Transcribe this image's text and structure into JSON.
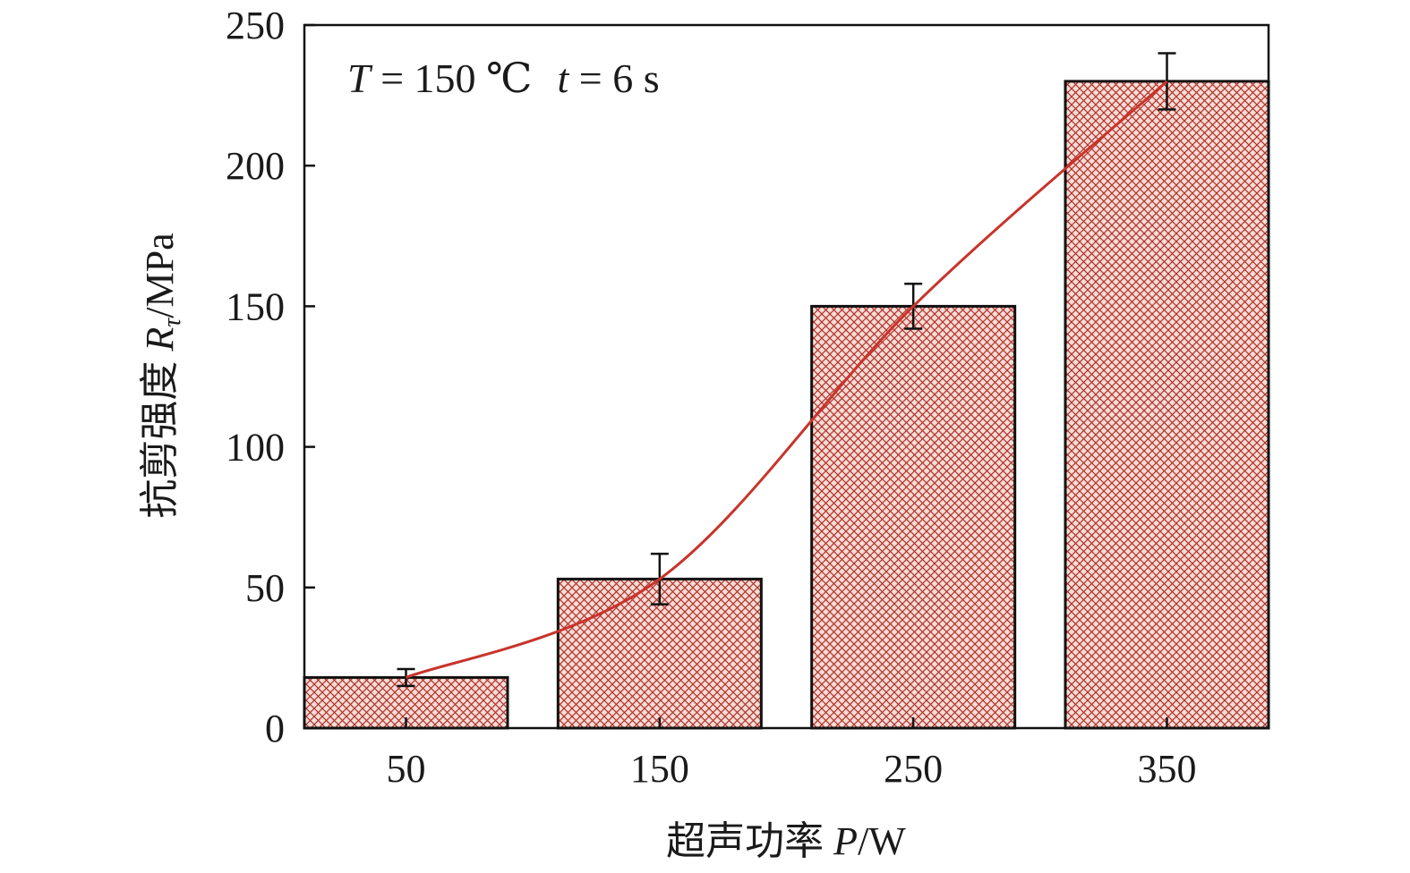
{
  "chart_data": {
    "type": "bar",
    "categories": [
      "50",
      "150",
      "250",
      "350"
    ],
    "values": [
      18,
      53,
      150,
      230
    ],
    "errors": [
      3,
      9,
      8,
      10
    ],
    "trend_line": true,
    "xlabel_cn": "超声功率 ",
    "xlabel_var": "P",
    "xlabel_unit": "/W",
    "ylabel_cn": "抗剪强度 ",
    "ylabel_var": "R",
    "ylabel_sub": "τ",
    "ylabel_unit": "/MPa",
    "ylim": [
      0,
      250
    ],
    "yticks": [
      "0",
      "50",
      "100",
      "150",
      "200",
      "250"
    ],
    "grid": false,
    "annotation": {
      "T_var": "T",
      "T_value": " = 150 ℃",
      "t_var": "t",
      "t_value": " = 6 s"
    },
    "colors": {
      "bar_fill": "#f6dcd6",
      "hatch": "#b0302a",
      "line": "#c8342b",
      "edge": "#111111"
    }
  }
}
